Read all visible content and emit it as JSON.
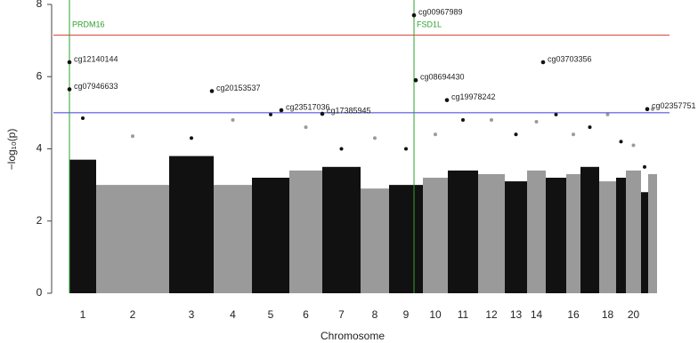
{
  "chart_data": {
    "type": "manhattan",
    "x_label": "Chromosome",
    "y_label": "−log₁₀(p)",
    "ylim": [
      0,
      8
    ],
    "yticks": [
      0,
      2,
      4,
      6,
      8
    ],
    "xlim": [
      0,
      692
    ],
    "colors": [
      "#111111",
      "#9a9a9a"
    ],
    "chromosomes": [
      {
        "label": "1",
        "start": 18,
        "end": 48,
        "bulk": 3.7,
        "peak": 4.85
      },
      {
        "label": "2",
        "start": 48,
        "end": 130,
        "bulk": 3.0,
        "peak": 4.35
      },
      {
        "label": "3",
        "start": 130,
        "end": 180,
        "bulk": 3.8,
        "peak": 4.3
      },
      {
        "label": "4",
        "start": 180,
        "end": 223,
        "bulk": 3.0,
        "peak": 4.8
      },
      {
        "label": "5",
        "start": 223,
        "end": 265,
        "bulk": 3.2,
        "peak": 4.95
      },
      {
        "label": "6",
        "start": 265,
        "end": 302,
        "bulk": 3.4,
        "peak": 4.6
      },
      {
        "label": "7",
        "start": 302,
        "end": 345,
        "bulk": 3.5,
        "peak": 4.0
      },
      {
        "label": "8",
        "start": 345,
        "end": 377,
        "bulk": 2.9,
        "peak": 4.3
      },
      {
        "label": "9",
        "start": 377,
        "end": 415,
        "bulk": 3.0,
        "peak": 4.0
      },
      {
        "label": "10",
        "start": 415,
        "end": 443,
        "bulk": 3.2,
        "peak": 4.4
      },
      {
        "label": "11",
        "start": 443,
        "end": 477,
        "bulk": 3.4,
        "peak": 4.8
      },
      {
        "label": "12",
        "start": 477,
        "end": 507,
        "bulk": 3.3,
        "peak": 4.8
      },
      {
        "label": "13",
        "start": 507,
        "end": 532,
        "bulk": 3.1,
        "peak": 4.4
      },
      {
        "label": "14",
        "start": 532,
        "end": 553,
        "bulk": 3.4,
        "peak": 4.75
      },
      {
        "label": null,
        "start": 553,
        "end": 576,
        "bulk": 3.2,
        "peak": 4.95
      },
      {
        "label": "16",
        "start": 576,
        "end": 592,
        "bulk": 3.3,
        "peak": 4.4
      },
      {
        "label": null,
        "start": 592,
        "end": 613,
        "bulk": 3.5,
        "peak": 4.6
      },
      {
        "label": "18",
        "start": 613,
        "end": 632,
        "bulk": 3.1,
        "peak": 4.95
      },
      {
        "label": null,
        "start": 632,
        "end": 643,
        "bulk": 3.2,
        "peak": 4.2
      },
      {
        "label": "20",
        "start": 643,
        "end": 660,
        "bulk": 3.4,
        "peak": 4.1
      },
      {
        "label": null,
        "start": 660,
        "end": 668,
        "bulk": 2.8,
        "peak": 3.5
      },
      {
        "label": null,
        "start": 668,
        "end": 678,
        "bulk": 3.3,
        "peak": 5.1
      }
    ],
    "thresholds": [
      {
        "value": 7.15,
        "color": "#d9463e"
      },
      {
        "value": 5.0,
        "color": "#3b3bd9"
      }
    ],
    "genes": [
      {
        "label": "PRDM16",
        "x": 18,
        "color": "#2ea12e"
      },
      {
        "label": "FSD1L",
        "x": 405,
        "color": "#2ea12e"
      }
    ],
    "points": [
      {
        "label": "cg00967989",
        "x": 405,
        "y": 7.7
      },
      {
        "label": "cg12140144",
        "x": 18,
        "y": 6.4
      },
      {
        "label": "cg07946633",
        "x": 18,
        "y": 5.65
      },
      {
        "label": "cg20153537",
        "x": 178,
        "y": 5.6
      },
      {
        "label": "cg23517036",
        "x": 256,
        "y": 5.07
      },
      {
        "label": "cg17385945",
        "x": 302,
        "y": 4.97
      },
      {
        "label": "cg08694430",
        "x": 407,
        "y": 5.9
      },
      {
        "label": "cg19978242",
        "x": 442,
        "y": 5.35
      },
      {
        "label": "cg03703356",
        "x": 550,
        "y": 6.4
      },
      {
        "label": "cg02357751",
        "x": 667,
        "y": 5.1
      }
    ]
  }
}
